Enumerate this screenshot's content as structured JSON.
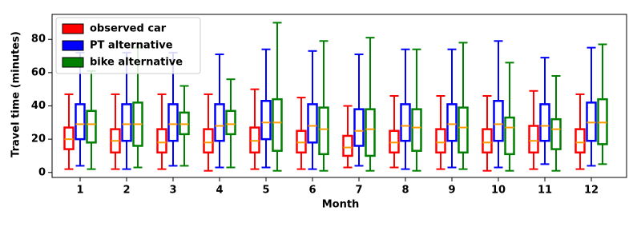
{
  "chart_data": {
    "type": "box",
    "xlabel": "Month",
    "ylabel": "Travel time (minutes)",
    "categories": [
      "1",
      "2",
      "3",
      "4",
      "5",
      "6",
      "7",
      "8",
      "9",
      "10",
      "11",
      "12"
    ],
    "ylim": [
      -3,
      95
    ],
    "yticks": [
      0,
      20,
      40,
      60,
      80
    ],
    "legend": "upper left",
    "median_color": "#ff9900",
    "series": [
      {
        "name": "observed car",
        "color": "#ff0000",
        "whislo": [
          2,
          2,
          2,
          1,
          2,
          2,
          3,
          3,
          2,
          1,
          2,
          2
        ],
        "q1": [
          14,
          12,
          12,
          12,
          12,
          12,
          10,
          12,
          12,
          12,
          12,
          12
        ],
        "med": [
          20,
          19,
          18,
          18,
          19,
          18,
          15,
          18,
          18,
          18,
          19,
          18
        ],
        "q3": [
          27,
          26,
          26,
          26,
          27,
          25,
          22,
          25,
          26,
          26,
          28,
          26
        ],
        "whishi": [
          47,
          47,
          47,
          47,
          50,
          45,
          40,
          46,
          46,
          46,
          49,
          47
        ]
      },
      {
        "name": "PT alternative",
        "color": "#0000ff",
        "whislo": [
          4,
          2,
          4,
          3,
          3,
          2,
          4,
          2,
          3,
          3,
          5,
          4
        ],
        "q1": [
          20,
          19,
          19,
          19,
          20,
          18,
          16,
          19,
          19,
          19,
          19,
          19
        ],
        "med": [
          29,
          29,
          29,
          28,
          30,
          28,
          25,
          28,
          29,
          29,
          28,
          30
        ],
        "q3": [
          41,
          41,
          41,
          41,
          43,
          41,
          38,
          41,
          41,
          43,
          41,
          42
        ],
        "whishi": [
          72,
          72,
          72,
          71,
          74,
          73,
          71,
          74,
          74,
          79,
          69,
          75
        ]
      },
      {
        "name": "bike alternative",
        "color": "#008000",
        "whislo": [
          2,
          3,
          4,
          3,
          1,
          1,
          1,
          1,
          2,
          1,
          1,
          5
        ],
        "q1": [
          18,
          16,
          23,
          23,
          13,
          11,
          10,
          13,
          12,
          11,
          14,
          17
        ],
        "med": [
          29,
          29,
          29,
          29,
          30,
          26,
          26,
          27,
          27,
          27,
          26,
          30
        ],
        "q3": [
          37,
          42,
          36,
          37,
          44,
          39,
          38,
          38,
          39,
          33,
          32,
          44
        ],
        "whishi": [
          61,
          75,
          52,
          56,
          90,
          79,
          81,
          74,
          78,
          66,
          58,
          77
        ]
      }
    ]
  }
}
